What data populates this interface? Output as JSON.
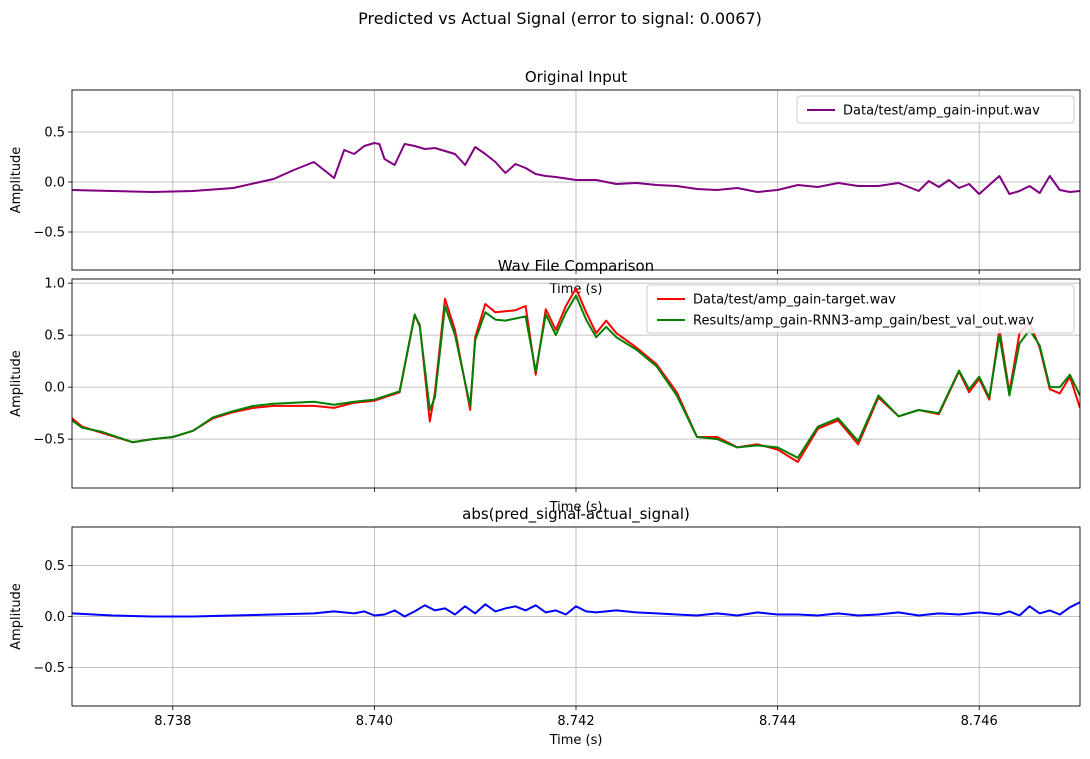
{
  "figure": {
    "suptitle": "Predicted vs Actual Signal (error to signal: 0.0067)"
  },
  "chart_data": [
    {
      "type": "line",
      "title": "Original Input",
      "xlabel": "Time (s)",
      "ylabel": "Amplitude",
      "xlim": [
        8.737,
        8.747
      ],
      "ylim": [
        -0.88,
        0.92
      ],
      "yticks": [
        -0.5,
        0.0,
        0.5
      ],
      "ytick_labels": [
        "−0.5",
        "0.0",
        "0.5"
      ],
      "grid": true,
      "legend": "top-right",
      "series": [
        {
          "name": "Data/test/amp_gain-input.wav",
          "color": "#800080",
          "x": [
            8.737,
            8.7374,
            8.7378,
            8.7382,
            8.7386,
            8.739,
            8.7392,
            8.7394,
            8.7396,
            8.7397,
            8.7398,
            8.7399,
            8.74,
            8.74005,
            8.7401,
            8.7402,
            8.7403,
            8.7404,
            8.7405,
            8.7406,
            8.7407,
            8.7408,
            8.7409,
            8.741,
            8.7411,
            8.7412,
            8.7413,
            8.7414,
            8.7415,
            8.7416,
            8.7417,
            8.7418,
            8.742,
            8.7422,
            8.7424,
            8.7426,
            8.7428,
            8.743,
            8.7432,
            8.7434,
            8.7436,
            8.7438,
            8.744,
            8.7442,
            8.7444,
            8.7446,
            8.7448,
            8.745,
            8.7452,
            8.7454,
            8.7455,
            8.7456,
            8.7457,
            8.7458,
            8.7459,
            8.746,
            8.7461,
            8.7462,
            8.7463,
            8.7464,
            8.7465,
            8.7466,
            8.7467,
            8.7468,
            8.7469,
            8.747
          ],
          "y": [
            -0.08,
            -0.09,
            -0.1,
            -0.09,
            -0.06,
            0.03,
            0.12,
            0.2,
            0.04,
            0.32,
            0.28,
            0.36,
            0.39,
            0.38,
            0.23,
            0.17,
            0.38,
            0.36,
            0.33,
            0.34,
            0.31,
            0.28,
            0.17,
            0.35,
            0.28,
            0.2,
            0.09,
            0.18,
            0.14,
            0.08,
            0.06,
            0.05,
            0.02,
            0.02,
            -0.02,
            -0.01,
            -0.03,
            -0.04,
            -0.07,
            -0.08,
            -0.06,
            -0.1,
            -0.08,
            -0.03,
            -0.05,
            -0.01,
            -0.04,
            -0.04,
            -0.01,
            -0.09,
            0.01,
            -0.05,
            0.02,
            -0.06,
            -0.02,
            -0.12,
            -0.03,
            0.06,
            -0.12,
            -0.09,
            -0.04,
            -0.11,
            0.06,
            -0.08,
            -0.1,
            -0.09
          ]
        }
      ]
    },
    {
      "type": "line",
      "title": "Wav File Comparison",
      "xlabel": "Time (s)",
      "ylabel": "Amplitude",
      "xlim": [
        8.737,
        8.747
      ],
      "ylim": [
        -0.97,
        1.04
      ],
      "yticks": [
        -0.5,
        0.0,
        0.5,
        1.0
      ],
      "ytick_labels": [
        "−0.5",
        "0.0",
        "0.5",
        "1.0"
      ],
      "grid": true,
      "legend": "top-right",
      "series": [
        {
          "name": "Data/test/amp_gain-target.wav",
          "color": "#ff0000",
          "x": [
            8.737,
            8.7371,
            8.7373,
            8.7376,
            8.7378,
            8.738,
            8.7382,
            8.7384,
            8.7386,
            8.7388,
            8.739,
            8.7392,
            8.7394,
            8.7396,
            8.7398,
            8.74,
            8.74025,
            8.7404,
            8.74045,
            8.74055,
            8.7406,
            8.7407,
            8.7408,
            8.74095,
            8.741,
            8.7411,
            8.7412,
            8.7413,
            8.7414,
            8.7415,
            8.7416,
            8.7417,
            8.7418,
            8.7419,
            8.742,
            8.7421,
            8.7422,
            8.7423,
            8.7424,
            8.7425,
            8.7426,
            8.7428,
            8.743,
            8.7432,
            8.7434,
            8.7436,
            8.7438,
            8.744,
            8.7442,
            8.7444,
            8.7446,
            8.7448,
            8.745,
            8.7452,
            8.7454,
            8.7456,
            8.7458,
            8.7459,
            8.746,
            8.7461,
            8.7462,
            8.7463,
            8.7464,
            8.7465,
            8.7466,
            8.7467,
            8.7468,
            8.7469,
            8.747
          ],
          "y": [
            -0.3,
            -0.38,
            -0.44,
            -0.53,
            -0.5,
            -0.48,
            -0.42,
            -0.3,
            -0.24,
            -0.2,
            -0.18,
            -0.18,
            -0.18,
            -0.2,
            -0.15,
            -0.13,
            -0.05,
            0.69,
            0.6,
            -0.33,
            -0.05,
            0.85,
            0.55,
            -0.22,
            0.48,
            0.8,
            0.72,
            0.73,
            0.74,
            0.78,
            0.12,
            0.75,
            0.55,
            0.78,
            0.95,
            0.72,
            0.52,
            0.64,
            0.52,
            0.45,
            0.38,
            0.22,
            -0.05,
            -0.48,
            -0.48,
            -0.58,
            -0.55,
            -0.6,
            -0.72,
            -0.4,
            -0.32,
            -0.55,
            -0.1,
            -0.28,
            -0.22,
            -0.26,
            0.15,
            -0.05,
            0.08,
            -0.12,
            0.56,
            -0.05,
            0.52,
            0.62,
            0.38,
            -0.02,
            -0.06,
            0.1,
            -0.2
          ]
        },
        {
          "name": "Results/amp_gain-RNN3-amp_gain/best_val_out.wav",
          "color": "#008000",
          "x": [
            8.737,
            8.7371,
            8.7373,
            8.7376,
            8.7378,
            8.738,
            8.7382,
            8.7384,
            8.7386,
            8.7388,
            8.739,
            8.7392,
            8.7394,
            8.7396,
            8.7398,
            8.74,
            8.74025,
            8.7404,
            8.74045,
            8.74055,
            8.7406,
            8.7407,
            8.7408,
            8.74095,
            8.741,
            8.7411,
            8.7412,
            8.7413,
            8.7414,
            8.7415,
            8.7416,
            8.7417,
            8.7418,
            8.7419,
            8.742,
            8.7421,
            8.7422,
            8.7423,
            8.7424,
            8.7425,
            8.7426,
            8.7428,
            8.743,
            8.7432,
            8.7434,
            8.7436,
            8.7438,
            8.744,
            8.7442,
            8.7444,
            8.7446,
            8.7448,
            8.745,
            8.7452,
            8.7454,
            8.7456,
            8.7458,
            8.7459,
            8.746,
            8.7461,
            8.7462,
            8.7463,
            8.7464,
            8.7465,
            8.7466,
            8.7467,
            8.7468,
            8.7469,
            8.747
          ],
          "y": [
            -0.32,
            -0.39,
            -0.43,
            -0.53,
            -0.5,
            -0.48,
            -0.42,
            -0.29,
            -0.23,
            -0.18,
            -0.16,
            -0.15,
            -0.14,
            -0.17,
            -0.14,
            -0.12,
            -0.04,
            0.7,
            0.58,
            -0.22,
            -0.1,
            0.78,
            0.5,
            -0.18,
            0.45,
            0.72,
            0.65,
            0.64,
            0.66,
            0.68,
            0.15,
            0.7,
            0.5,
            0.72,
            0.88,
            0.65,
            0.48,
            0.58,
            0.48,
            0.42,
            0.36,
            0.2,
            -0.08,
            -0.48,
            -0.5,
            -0.58,
            -0.56,
            -0.58,
            -0.68,
            -0.38,
            -0.3,
            -0.52,
            -0.08,
            -0.28,
            -0.22,
            -0.25,
            0.16,
            -0.02,
            0.1,
            -0.1,
            0.5,
            -0.08,
            0.42,
            0.55,
            0.4,
            0.0,
            0.0,
            0.12,
            -0.08
          ]
        }
      ]
    },
    {
      "type": "line",
      "title": "abs(pred_signal-actual_signal)",
      "xlabel": "Time (s)",
      "ylabel": "Amplitude",
      "xlim": [
        8.737,
        8.747
      ],
      "ylim": [
        -0.88,
        0.88
      ],
      "xticks": [
        8.738,
        8.74,
        8.742,
        8.744,
        8.746
      ],
      "xtick_labels": [
        "8.738",
        "8.740",
        "8.742",
        "8.744",
        "8.746"
      ],
      "yticks": [
        -0.5,
        0.0,
        0.5
      ],
      "ytick_labels": [
        "−0.5",
        "0.0",
        "0.5"
      ],
      "grid": true,
      "series": [
        {
          "color": "#0000ff",
          "x": [
            8.737,
            8.7374,
            8.7378,
            8.7382,
            8.7386,
            8.739,
            8.7394,
            8.7396,
            8.7398,
            8.7399,
            8.74,
            8.7401,
            8.7402,
            8.7403,
            8.7404,
            8.7405,
            8.7406,
            8.7407,
            8.7408,
            8.7409,
            8.741,
            8.7411,
            8.7412,
            8.7413,
            8.7414,
            8.7415,
            8.7416,
            8.7417,
            8.7418,
            8.7419,
            8.742,
            8.7421,
            8.7422,
            8.7424,
            8.7426,
            8.7428,
            8.743,
            8.7432,
            8.7434,
            8.7436,
            8.7438,
            8.744,
            8.7442,
            8.7444,
            8.7446,
            8.7448,
            8.745,
            8.7452,
            8.7454,
            8.7456,
            8.7458,
            8.746,
            8.7462,
            8.7463,
            8.7464,
            8.7465,
            8.7466,
            8.7467,
            8.7468,
            8.7469,
            8.747
          ],
          "y": [
            0.03,
            0.01,
            0.0,
            0.0,
            0.01,
            0.02,
            0.03,
            0.05,
            0.03,
            0.05,
            0.01,
            0.02,
            0.06,
            0.0,
            0.05,
            0.11,
            0.06,
            0.08,
            0.02,
            0.1,
            0.03,
            0.12,
            0.05,
            0.08,
            0.1,
            0.06,
            0.11,
            0.04,
            0.06,
            0.02,
            0.1,
            0.05,
            0.04,
            0.06,
            0.04,
            0.03,
            0.02,
            0.01,
            0.03,
            0.01,
            0.04,
            0.02,
            0.02,
            0.01,
            0.03,
            0.01,
            0.02,
            0.04,
            0.01,
            0.03,
            0.02,
            0.04,
            0.02,
            0.05,
            0.01,
            0.1,
            0.03,
            0.06,
            0.02,
            0.09,
            0.14
          ]
        }
      ]
    }
  ]
}
